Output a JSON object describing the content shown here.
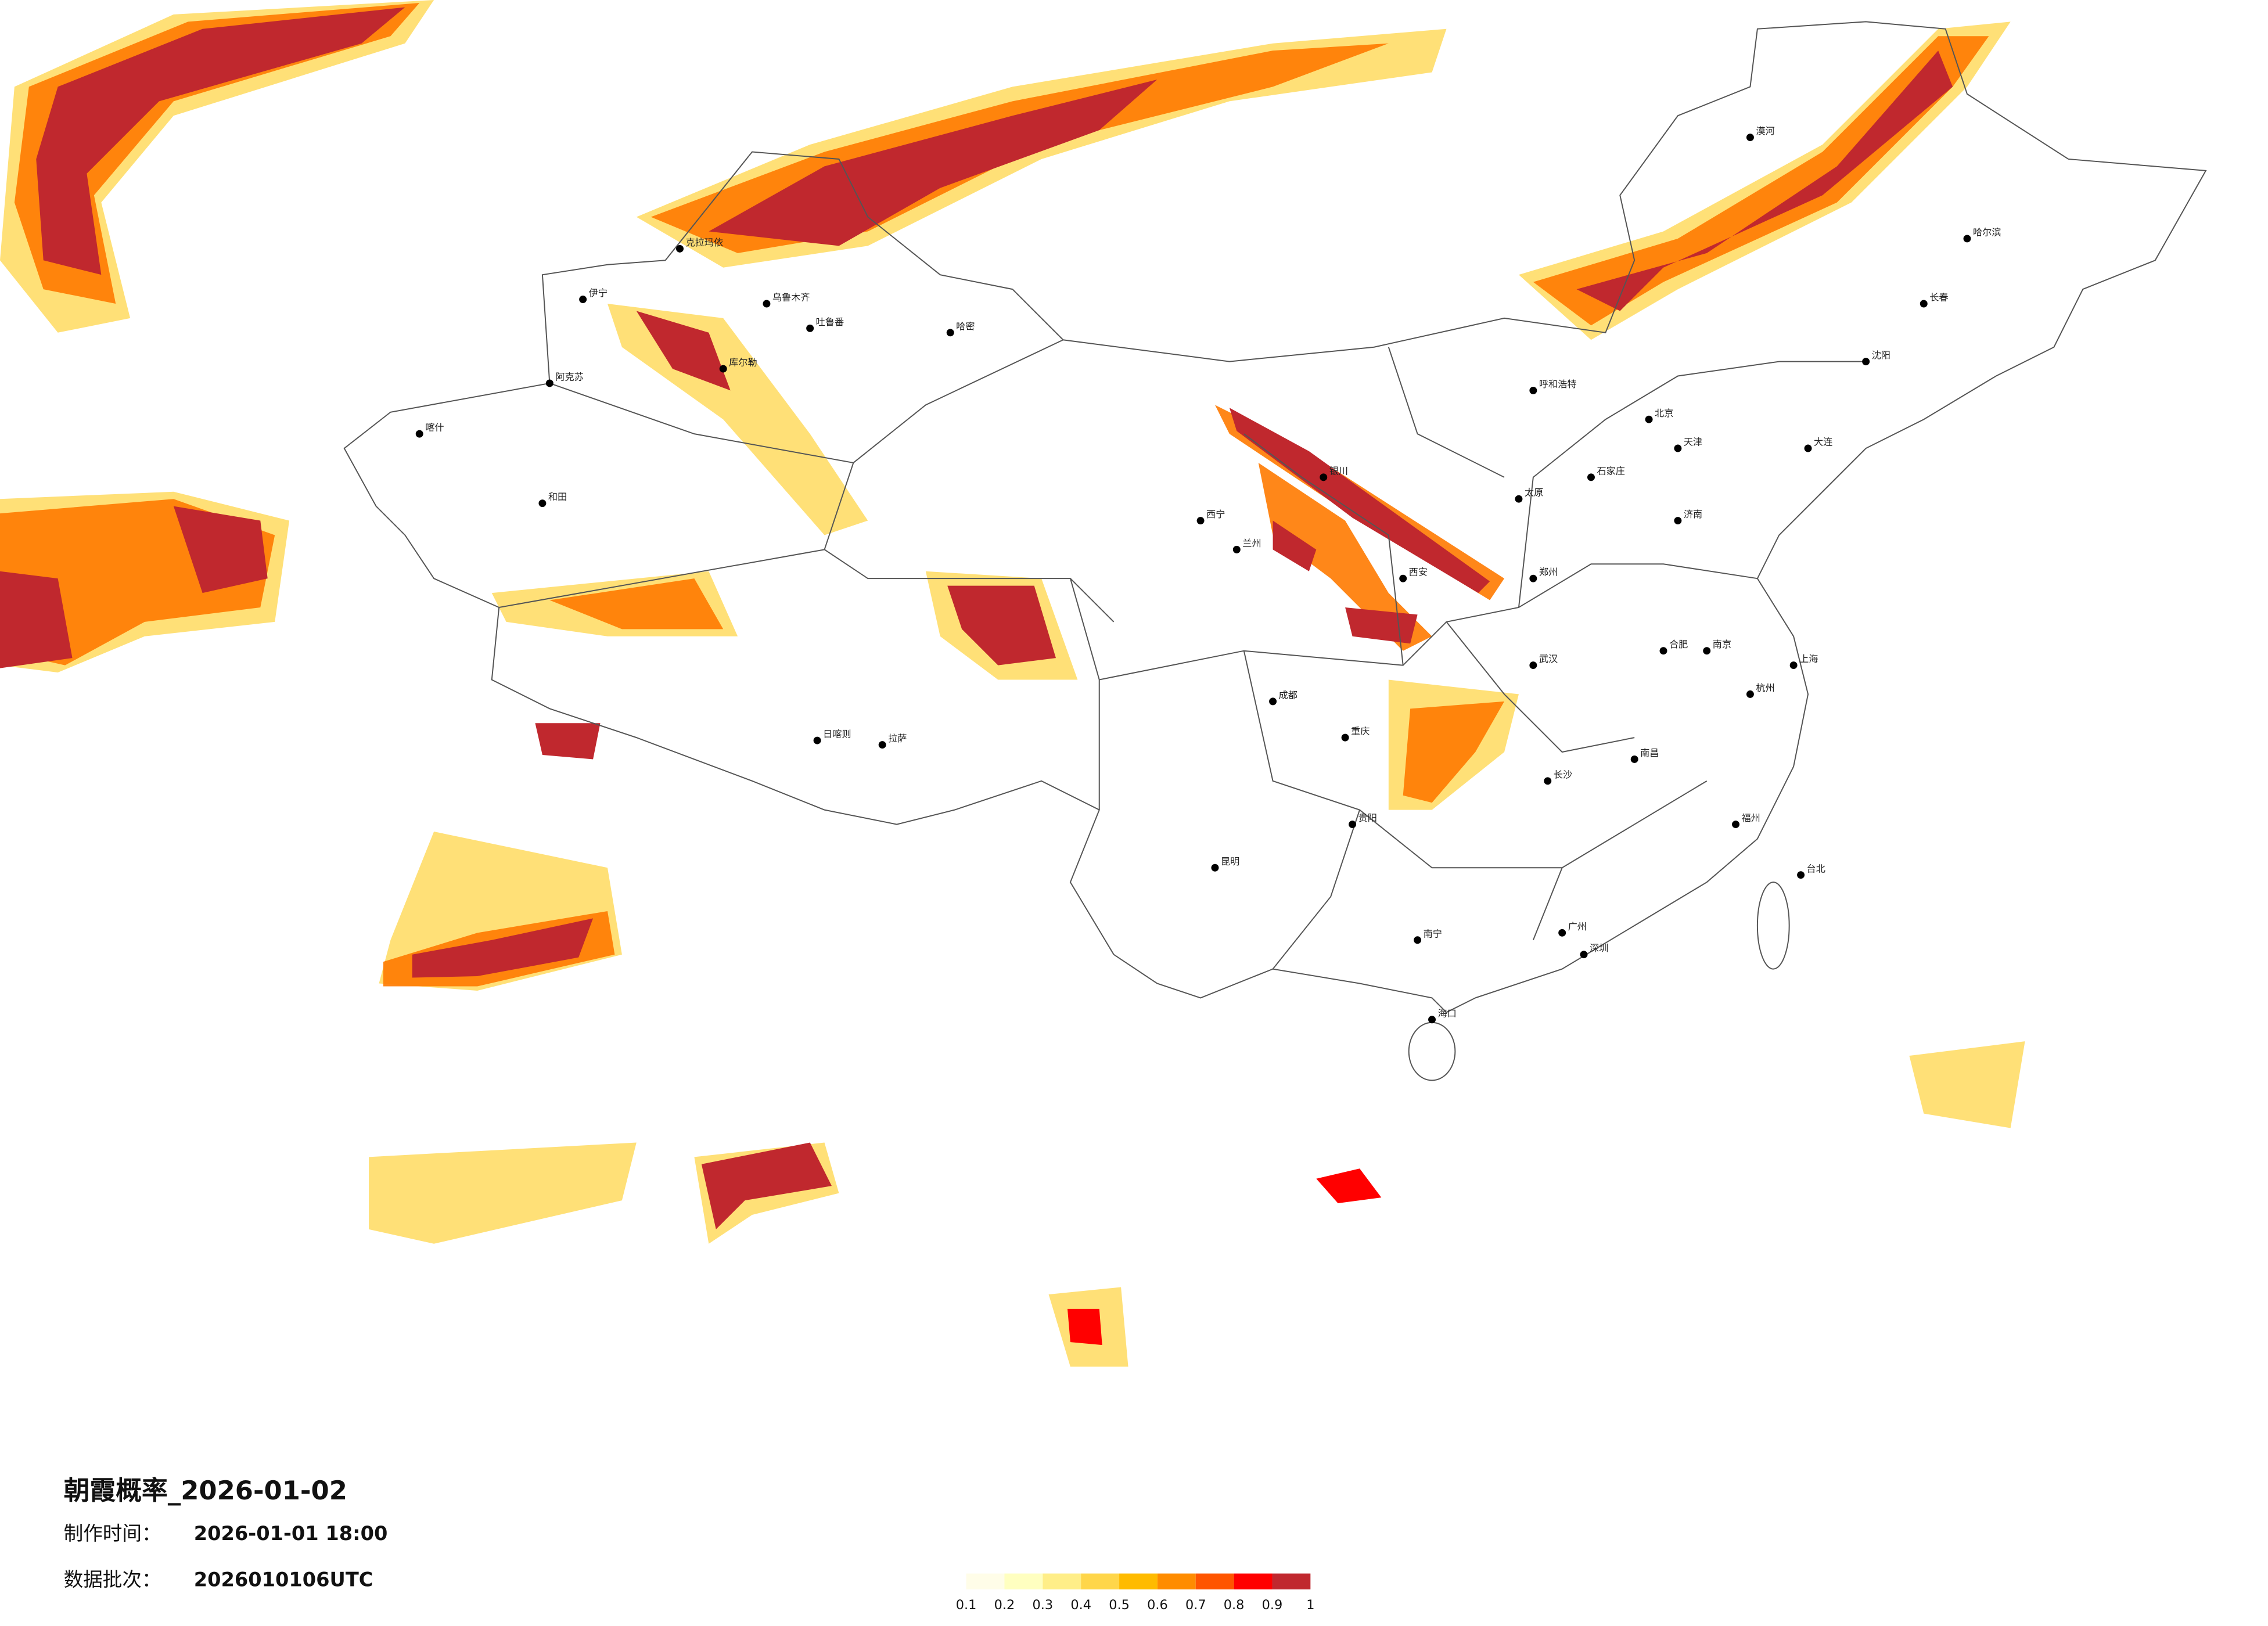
{
  "title": "朝霞概率_2026-01-02",
  "info": [
    {
      "label": "制作时间：",
      "value": "2026-01-01 18:00"
    },
    {
      "label": "数据批次：",
      "value": "2026010106UTC"
    }
  ],
  "legend": {
    "ticks": [
      0.1,
      0.2,
      0.3,
      0.4,
      0.5,
      0.6,
      0.7,
      0.8,
      0.9,
      1
    ],
    "colors": [
      "#fffde8",
      "#ffffc0",
      "#ffee88",
      "#ffd64a",
      "#ffbb00",
      "#ff8c00",
      "#ff5500",
      "#ff0000",
      "#c0282e"
    ]
  },
  "cities": [
    {
      "name": "乌鲁木齐"
    },
    {
      "name": "哈密"
    },
    {
      "name": "吐鲁番"
    },
    {
      "name": "库尔勒"
    },
    {
      "name": "阿克苏"
    },
    {
      "name": "喀什"
    },
    {
      "name": "和田"
    },
    {
      "name": "伊宁"
    },
    {
      "name": "克拉玛依"
    },
    {
      "name": "拉萨"
    },
    {
      "name": "日喀则"
    },
    {
      "name": "西宁"
    },
    {
      "name": "兰州"
    },
    {
      "name": "银川"
    },
    {
      "name": "呼和浩特"
    },
    {
      "name": "北京"
    },
    {
      "name": "天津"
    },
    {
      "name": "石家庄"
    },
    {
      "name": "太原"
    },
    {
      "name": "济南"
    },
    {
      "name": "郑州"
    },
    {
      "name": "西安"
    },
    {
      "name": "成都"
    },
    {
      "name": "重庆"
    },
    {
      "name": "武汉"
    },
    {
      "name": "长沙"
    },
    {
      "name": "南昌"
    },
    {
      "name": "杭州"
    },
    {
      "name": "上海"
    },
    {
      "name": "南京"
    },
    {
      "name": "合肥"
    },
    {
      "name": "福州"
    },
    {
      "name": "广州"
    },
    {
      "name": "深圳"
    },
    {
      "name": "南宁"
    },
    {
      "name": "贵阳"
    },
    {
      "name": "昆明"
    },
    {
      "name": "海口"
    },
    {
      "name": "哈尔滨"
    },
    {
      "name": "长春"
    },
    {
      "name": "沈阳"
    },
    {
      "name": "大连"
    },
    {
      "name": "台北"
    },
    {
      "name": "漠河"
    }
  ]
}
